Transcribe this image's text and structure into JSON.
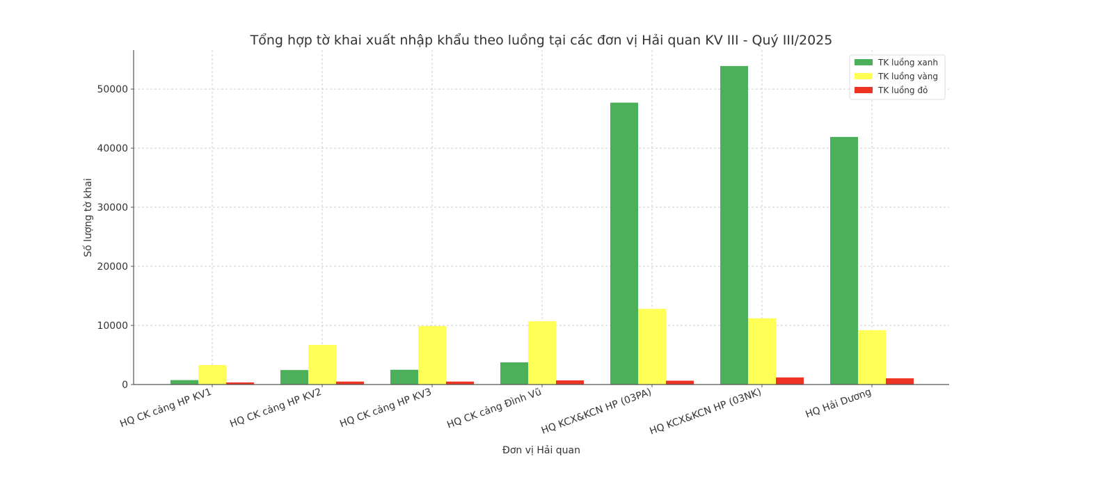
{
  "chart_data": {
    "type": "bar",
    "title": "Tổng hợp tờ khai xuất nhập khẩu theo luồng tại các đơn vị Hải quan KV III - Quý III/2025",
    "xlabel": "Đơn vị Hải quan",
    "ylabel": "Số lượng tờ khai",
    "categories": [
      "HQ CK cảng HP KV1",
      "HQ CK cảng HP KV2",
      "HQ CK cảng HP KV3",
      "HQ CK cảng Đình Vũ",
      "HQ KCX&KCN HP (03PA)",
      "HQ KCX&KCN HP (03NK)",
      "HQ Hải Dương"
    ],
    "series": [
      {
        "name": "TK luồng xanh",
        "color": "#4CAF5A",
        "values": [
          750,
          2450,
          2500,
          3750,
          47700,
          53900,
          41900
        ]
      },
      {
        "name": "TK luồng vàng",
        "color": "#FFFF55",
        "values": [
          3300,
          6700,
          9900,
          10700,
          12800,
          11200,
          9200
        ]
      },
      {
        "name": "TK luồng đỏ",
        "color": "#EE3322",
        "values": [
          350,
          500,
          500,
          700,
          650,
          1200,
          1050
        ]
      }
    ],
    "ylim": [
      0,
      56600
    ],
    "yticks": [
      0,
      10000,
      20000,
      30000,
      40000,
      50000
    ],
    "grid": true,
    "legend_position": "top-right"
  }
}
